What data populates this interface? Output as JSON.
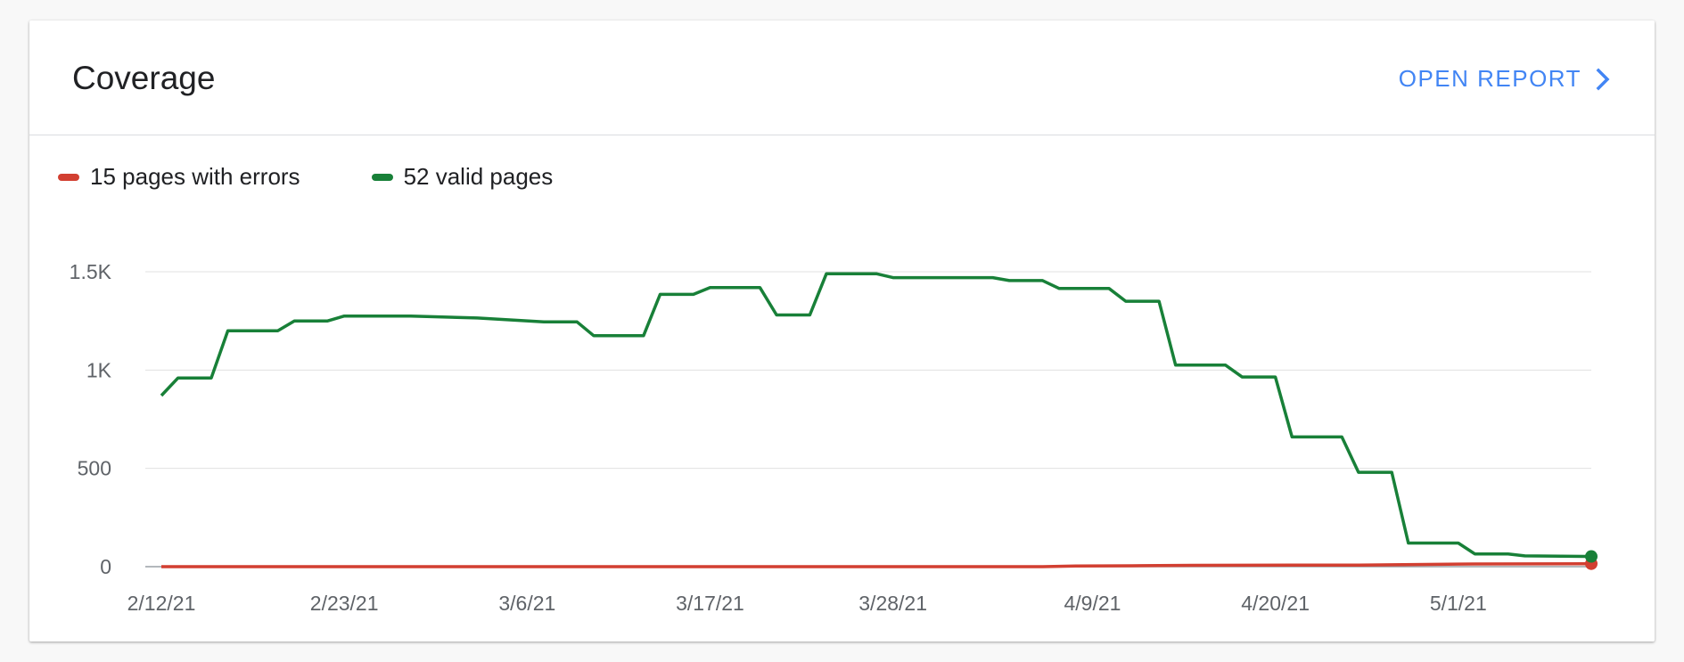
{
  "card": {
    "title": "Coverage",
    "open_report_label": "OPEN REPORT"
  },
  "icons": {
    "open_report": "chevron-right-icon"
  },
  "colors": {
    "errors": "#d23f31",
    "valid": "#188038",
    "link": "#4285f4",
    "grid": "#e0e0e0"
  },
  "legend": [
    {
      "label": "15 pages with errors",
      "color": "#d23f31"
    },
    {
      "label": "52 valid pages",
      "color": "#188038"
    }
  ],
  "chart_data": {
    "type": "line",
    "x_ticks": [
      "2/12/21",
      "2/23/21",
      "3/6/21",
      "3/17/21",
      "3/28/21",
      "4/9/21",
      "4/20/21",
      "5/1/21"
    ],
    "y_ticks": [
      "0",
      "500",
      "1K",
      "1.5K"
    ],
    "ylim": [
      0,
      1500
    ],
    "grid": true,
    "legend_position": "top-left",
    "series": [
      {
        "name": "15 pages with errors",
        "color": "#d23f31",
        "points": [
          [
            "2/12/21",
            0
          ],
          [
            "3/30/21",
            0
          ],
          [
            "4/6/21",
            0
          ],
          [
            "4/8/21",
            3
          ],
          [
            "4/12/21",
            5
          ],
          [
            "4/15/21",
            7
          ],
          [
            "4/21/21",
            8
          ],
          [
            "4/25/21",
            8
          ],
          [
            "5/1/21",
            13
          ],
          [
            "5/9/21",
            15
          ]
        ]
      },
      {
        "name": "52 valid pages",
        "color": "#188038",
        "points": [
          [
            "2/12/21",
            870
          ],
          [
            "2/13/21",
            960
          ],
          [
            "2/15/21",
            960
          ],
          [
            "2/16/21",
            1200
          ],
          [
            "2/19/21",
            1200
          ],
          [
            "2/20/21",
            1250
          ],
          [
            "2/22/21",
            1250
          ],
          [
            "2/23/21",
            1275
          ],
          [
            "2/27/21",
            1275
          ],
          [
            "3/3/21",
            1265
          ],
          [
            "3/7/21",
            1245
          ],
          [
            "3/9/21",
            1245
          ],
          [
            "3/10/21",
            1175
          ],
          [
            "3/13/21",
            1175
          ],
          [
            "3/14/21",
            1385
          ],
          [
            "3/16/21",
            1385
          ],
          [
            "3/17/21",
            1420
          ],
          [
            "3/20/21",
            1420
          ],
          [
            "3/21/21",
            1280
          ],
          [
            "3/23/21",
            1280
          ],
          [
            "3/24/21",
            1490
          ],
          [
            "3/27/21",
            1490
          ],
          [
            "3/28/21",
            1470
          ],
          [
            "4/3/21",
            1470
          ],
          [
            "4/4/21",
            1455
          ],
          [
            "4/6/21",
            1455
          ],
          [
            "4/7/21",
            1415
          ],
          [
            "4/10/21",
            1415
          ],
          [
            "4/11/21",
            1350
          ],
          [
            "4/13/21",
            1350
          ],
          [
            "4/14/21",
            1025
          ],
          [
            "4/17/21",
            1025
          ],
          [
            "4/18/21",
            965
          ],
          [
            "4/20/21",
            965
          ],
          [
            "4/21/21",
            660
          ],
          [
            "4/24/21",
            660
          ],
          [
            "4/25/21",
            480
          ],
          [
            "4/27/21",
            480
          ],
          [
            "4/28/21",
            120
          ],
          [
            "5/1/21",
            120
          ],
          [
            "5/2/21",
            65
          ],
          [
            "5/4/21",
            65
          ],
          [
            "5/5/21",
            55
          ],
          [
            "5/9/21",
            52
          ]
        ]
      }
    ]
  }
}
